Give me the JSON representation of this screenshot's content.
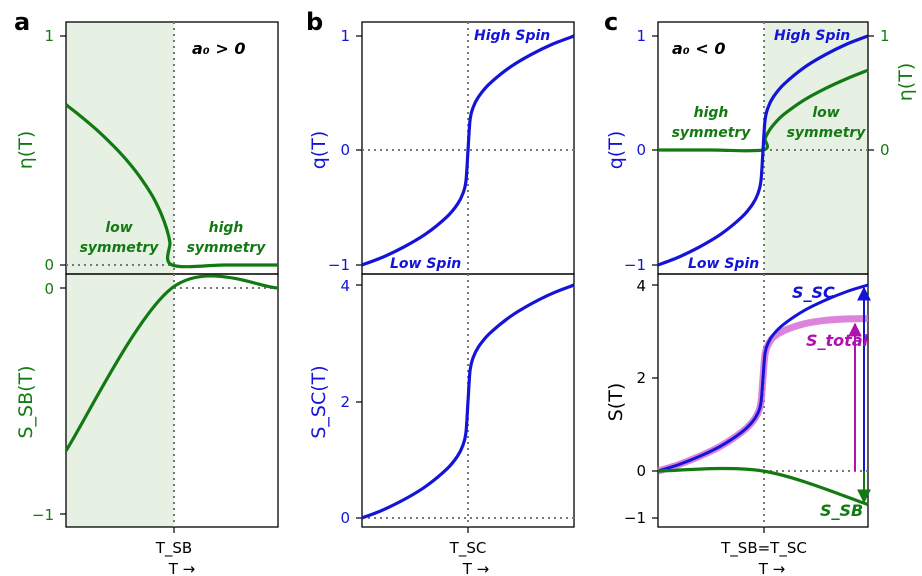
{
  "colors": {
    "green": "#137a13",
    "blue": "#1414d8",
    "magenta": "#d66ed6",
    "magenta_dark": "#b012b0",
    "shade": "#e6f0e3",
    "dotted": "#777777"
  },
  "panels": {
    "a": {
      "letter": "a",
      "condition": "a₀ > 0",
      "xtick": "T_SB",
      "xlabel": "T  →",
      "top_ylabel": "η(T)",
      "bottom_ylabel": "S_SB(T)",
      "low_label_1": "low",
      "low_label_2": "symmetry",
      "high_label_1": "high",
      "high_label_2": "symmetry"
    },
    "b": {
      "letter": "b",
      "xtick": "T_SC",
      "xlabel": "T  →",
      "top_ylabel": "q(T)",
      "bottom_ylabel": "S_SC(T)",
      "high_spin": "High Spin",
      "low_spin": "Low Spin"
    },
    "c": {
      "letter": "c",
      "condition": "a₀ < 0",
      "xtick": "T_SB=T_SC",
      "xlabel": "T  →",
      "top_ylabel_left": "q(T)",
      "top_ylabel_right": "η(T)",
      "bottom_ylabel": "S(T)",
      "high_spin": "High Spin",
      "low_spin": "Low Spin",
      "high_label_1": "high",
      "high_label_2": "symmetry",
      "low_label_1": "low",
      "low_label_2": "symmetry",
      "s_sc_label": "S_SC",
      "s_total_label": "S_total",
      "s_sb_label": "S_SB"
    }
  },
  "chart_data": [
    {
      "id": "a_top",
      "type": "line",
      "ylabel": "η(T)",
      "ylim": [
        0,
        1
      ],
      "yticks": [
        0,
        1
      ],
      "xtick": "T_SB",
      "series": [
        {
          "name": "η(T)",
          "x": [
            0,
            0.1,
            0.2,
            0.3,
            0.4,
            0.5,
            0.6,
            0.7,
            0.8,
            0.85,
            0.9,
            0.95,
            0.98,
            1.0,
            1.5,
            2.0
          ],
          "values": [
            0.7,
            0.664,
            0.626,
            0.586,
            0.542,
            0.495,
            0.443,
            0.383,
            0.313,
            0.271,
            0.221,
            0.157,
            0.099,
            0,
            0,
            0
          ]
        }
      ]
    },
    {
      "id": "a_bottom",
      "type": "line",
      "ylabel": "S_SB(T)",
      "ylim": [
        -1.05,
        0.05
      ],
      "yticks": [
        -1,
        0
      ],
      "xtick": "T_SB",
      "series": [
        {
          "name": "S_SB(T)",
          "x": [
            0,
            1.0,
            2.0
          ],
          "values": [
            -0.72,
            0,
            0
          ]
        }
      ]
    },
    {
      "id": "b_top",
      "type": "line",
      "ylabel": "q(T)",
      "ylim": [
        -1,
        1
      ],
      "yticks": [
        -1,
        0,
        1
      ],
      "xtick": "T_SC",
      "series": [
        {
          "name": "q(T)",
          "x": [
            0,
            0.2,
            0.4,
            0.6,
            0.8,
            0.9,
            0.95,
            0.98,
            1.0,
            1.02,
            1.05,
            1.1,
            1.2,
            1.4,
            1.6,
            1.8,
            2.0
          ],
          "values": [
            -1.0,
            -0.93,
            -0.84,
            -0.73,
            -0.58,
            -0.47,
            -0.38,
            -0.27,
            0,
            0.27,
            0.38,
            0.47,
            0.58,
            0.73,
            0.84,
            0.93,
            1.0
          ]
        }
      ]
    },
    {
      "id": "b_bottom",
      "type": "line",
      "ylabel": "S_SC(T)",
      "ylim": [
        -0.05,
        4
      ],
      "yticks": [
        0,
        2,
        4
      ],
      "xtick": "T_SC",
      "series": [
        {
          "name": "S_SC(T)",
          "x": [
            0,
            0.2,
            0.4,
            0.6,
            0.8,
            0.9,
            0.95,
            0.98,
            1.0,
            1.02,
            1.05,
            1.1,
            1.2,
            1.4,
            1.6,
            1.8,
            2.0
          ],
          "values": [
            0,
            0.14,
            0.32,
            0.54,
            0.84,
            1.06,
            1.24,
            1.46,
            2.0,
            2.54,
            2.76,
            2.94,
            3.16,
            3.46,
            3.68,
            3.86,
            4.0
          ]
        }
      ]
    },
    {
      "id": "c_top",
      "type": "line",
      "ylabel": "q(T)",
      "ylabel_right": "η(T)",
      "ylim": [
        -1,
        1
      ],
      "yticks": [
        -1,
        0,
        1
      ],
      "yticks_right": [
        0,
        1
      ],
      "xtick": "T_SB=T_SC",
      "series": [
        {
          "name": "q(T)",
          "x": [
            0,
            0.2,
            0.4,
            0.6,
            0.8,
            0.9,
            0.95,
            0.98,
            1.0,
            1.02,
            1.05,
            1.1,
            1.2,
            1.4,
            1.6,
            1.8,
            2.0
          ],
          "values": [
            -1.0,
            -0.93,
            -0.84,
            -0.73,
            -0.58,
            -0.47,
            -0.38,
            -0.27,
            0,
            0.27,
            0.38,
            0.47,
            0.58,
            0.73,
            0.84,
            0.93,
            1.0
          ]
        },
        {
          "name": "η(T)",
          "x": [
            0,
            0.5,
            1.0,
            1.02,
            1.05,
            1.1,
            1.2,
            1.4,
            1.6,
            1.8,
            2.0
          ],
          "values": [
            0,
            0,
            0,
            0.099,
            0.157,
            0.221,
            0.313,
            0.443,
            0.542,
            0.626,
            0.7
          ]
        }
      ]
    },
    {
      "id": "c_bottom",
      "type": "line",
      "ylabel": "S(T)",
      "ylim": [
        -1.25,
        4
      ],
      "yticks": [
        -1,
        0,
        2,
        4
      ],
      "xtick": "T_SB=T_SC",
      "series": [
        {
          "name": "S_SC",
          "x": [
            0,
            0.2,
            0.4,
            0.6,
            0.8,
            0.9,
            0.95,
            0.98,
            1.0,
            1.02,
            1.05,
            1.1,
            1.2,
            1.4,
            1.6,
            1.8,
            2.0
          ],
          "values": [
            0,
            0.14,
            0.32,
            0.54,
            0.84,
            1.06,
            1.24,
            1.46,
            2.0,
            2.54,
            2.76,
            2.94,
            3.16,
            3.46,
            3.68,
            3.86,
            4.0
          ]
        },
        {
          "name": "S_total",
          "x": [
            0,
            0.2,
            0.4,
            0.6,
            0.8,
            0.9,
            0.95,
            0.98,
            1.0,
            1.02,
            1.05,
            1.1,
            1.2,
            1.4,
            1.6,
            1.8,
            2.0
          ],
          "values": [
            0,
            0.14,
            0.32,
            0.54,
            0.84,
            1.06,
            1.24,
            1.46,
            2.0,
            2.52,
            2.72,
            2.88,
            3.02,
            3.17,
            3.24,
            3.27,
            3.28
          ]
        },
        {
          "name": "S_SB",
          "x": [
            0,
            1.0,
            2.0
          ],
          "values": [
            0,
            0,
            -0.72
          ]
        }
      ]
    }
  ]
}
